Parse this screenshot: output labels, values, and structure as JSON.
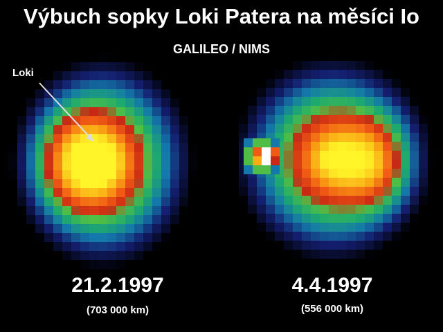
{
  "title": "Výbuch sopky Loki Patera na měsíci Io",
  "subtitle": "GALILEO / NIMS",
  "pointer_label": "Loki",
  "images": [
    {
      "date": "21.2.1997",
      "distance": "(703 000 km)"
    },
    {
      "date": "4.4.1997",
      "distance": "(556 000 km)"
    }
  ],
  "palette": {
    "background": "#000000",
    "cold": "#1a2a8a",
    "cool": "#1fa07a",
    "warm": "#e02010",
    "hot": "#ffe020"
  }
}
